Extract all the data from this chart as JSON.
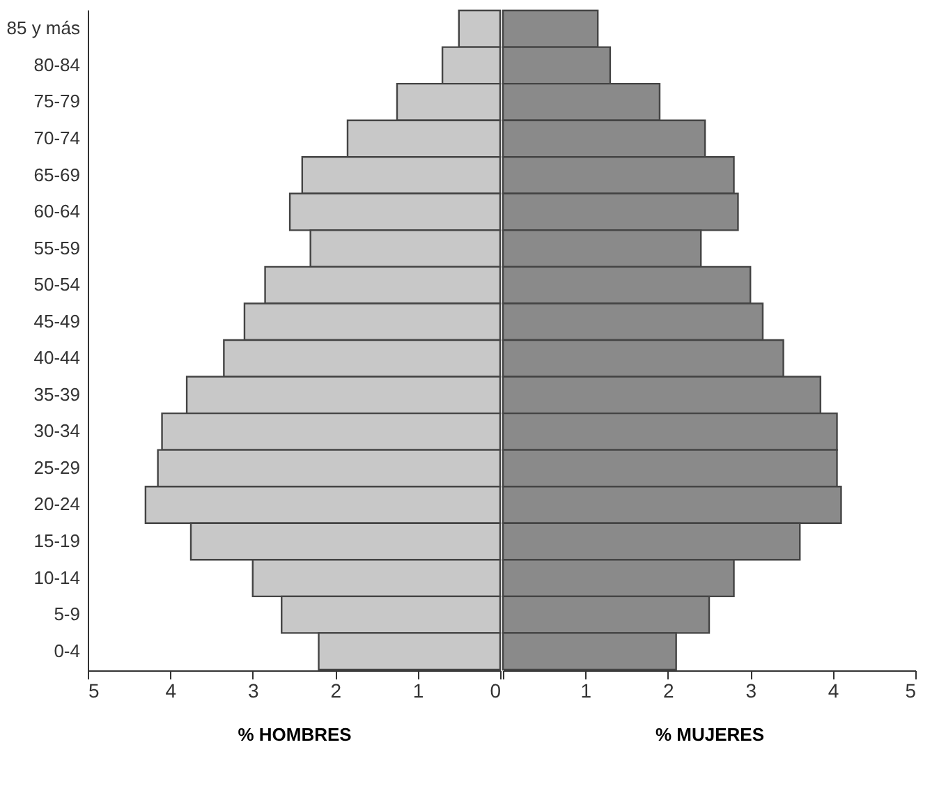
{
  "chart_data": [
    {
      "type": "bar",
      "orientation": "horizontal",
      "xlabel": "% HOMBRES",
      "categories": [
        "85 y más",
        "80-84",
        "75-79",
        "70-74",
        "65-69",
        "60-64",
        "55-59",
        "50-54",
        "45-49",
        "40-44",
        "35-39",
        "30-34",
        "25-29",
        "20-24",
        "15-19",
        "10-14",
        "5-9",
        "0-4"
      ],
      "values": [
        0.5,
        0.7,
        1.25,
        1.85,
        2.4,
        2.55,
        2.3,
        2.85,
        3.1,
        3.35,
        3.8,
        4.1,
        4.15,
        4.3,
        3.75,
        3.0,
        2.65,
        2.2
      ],
      "color": "#c8c8c8",
      "xlim": [
        5,
        0
      ],
      "xticks": [
        5,
        4,
        3,
        2,
        1,
        0
      ]
    },
    {
      "type": "bar",
      "orientation": "horizontal",
      "xlabel": "% MUJERES",
      "categories": [
        null,
        null,
        null,
        null,
        null,
        null,
        null,
        null,
        null,
        null,
        null,
        null,
        null,
        null,
        null,
        null,
        null,
        null
      ],
      "values": [
        1.15,
        1.3,
        1.9,
        2.45,
        2.8,
        2.85,
        2.4,
        3.0,
        3.15,
        3.4,
        3.85,
        4.05,
        4.05,
        4.1,
        3.6,
        2.8,
        2.5,
        2.1
      ],
      "color": "#8a8a8a",
      "xlim": [
        0,
        5
      ],
      "xticks": [
        {
          "value": 0,
          "label": null
        },
        1,
        2,
        3,
        4,
        5
      ],
      "tick_labels": "x"
    }
  ]
}
